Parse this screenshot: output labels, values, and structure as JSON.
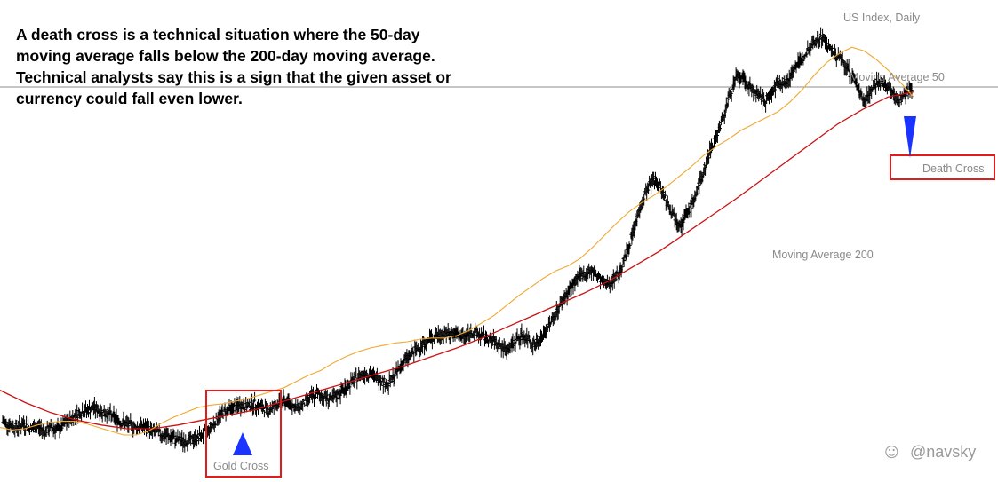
{
  "description": [
    "A death cross is a technical situation where the 50-day",
    "moving average falls below the 200-day moving average.",
    "Technical analysts say this is a sign that the given asset or",
    "currency could fall even lower."
  ],
  "watermark": "@navsky",
  "chart_data": {
    "type": "line",
    "title": "US Index, Daily",
    "xlabel": "",
    "ylabel": "",
    "grid": false,
    "legend": "none",
    "series": [
      {
        "name": "",
        "kind": "ohlc",
        "color": "#000000",
        "values": [
          101,
          98,
          96,
          99,
          95,
          97,
          93,
          96,
          94,
          100,
          104,
          108,
          110,
          112,
          109,
          107,
          104,
          100,
          98,
          96,
          97,
          94,
          92,
          90,
          88,
          86,
          85,
          86,
          88,
          92,
          98,
          106,
          110,
          112,
          114,
          113,
          115,
          112,
          110,
          114,
          117,
          116,
          111,
          115,
          120,
          123,
          121,
          118,
          123,
          128,
          133,
          138,
          140,
          137,
          135,
          130,
          138,
          147,
          153,
          158,
          163,
          167,
          170,
          171,
          172,
          170,
          169,
          173,
          171,
          168,
          166,
          162,
          158,
          164,
          170,
          168,
          163,
          168,
          178,
          188,
          198,
          207,
          215,
          219,
          222,
          217,
          211,
          214,
          220,
          234,
          252,
          272,
          287,
          296,
          290,
          276,
          265,
          260,
          270,
          283,
          299,
          318,
          331,
          347,
          366,
          379,
          374,
          369,
          362,
          359,
          367,
          375,
          373,
          385,
          390,
          400,
          407,
          410,
          402,
          395,
          391,
          382,
          372,
          359,
          367,
          374,
          371,
          366,
          359,
          365,
          371
        ]
      },
      {
        "name": "Moving Average 50",
        "color": "#f0a830",
        "values": [
          96,
          94,
          95,
          98,
          100,
          101,
          101,
          99,
          96,
          93,
          90,
          90,
          93,
          99,
          104,
          108,
          112,
          114,
          115,
          117,
          119,
          122,
          125,
          128,
          133,
          138,
          142,
          148,
          153,
          157,
          160,
          162,
          164,
          165,
          167,
          168,
          168,
          170,
          174,
          180,
          186,
          194,
          202,
          209,
          216,
          222,
          226,
          232,
          241,
          251,
          261,
          270,
          277,
          283,
          290,
          298,
          306,
          315,
          322,
          328,
          335,
          340,
          345,
          350,
          358,
          368,
          380,
          390,
          397,
          402,
          399,
          392,
          383,
          373,
          362
        ]
      },
      {
        "name": "Moving Average 200",
        "color": "#cc1111",
        "values": [
          126,
          116,
          108,
          102,
          98,
          95,
          95,
          98,
          102,
          106,
          110,
          116,
          122,
          128,
          134,
          140,
          146,
          153,
          160,
          168,
          177,
          186,
          195,
          204,
          214,
          226,
          238,
          252,
          266,
          280,
          295,
          310,
          325,
          340,
          352,
          362,
          366
        ]
      }
    ],
    "annotations": [
      {
        "name": "gold-cross",
        "label": "Gold Cross",
        "marker_color": "#1a33ff",
        "marker_direction": "up",
        "box_color": "#e31b1b"
      },
      {
        "name": "death-cross",
        "label": "Death Cross",
        "marker_color": "#1a33ff",
        "marker_direction": "down",
        "box_color": "#e31b1b"
      }
    ],
    "reference_line": {
      "value": 370,
      "color": "#8c8c8c"
    }
  }
}
